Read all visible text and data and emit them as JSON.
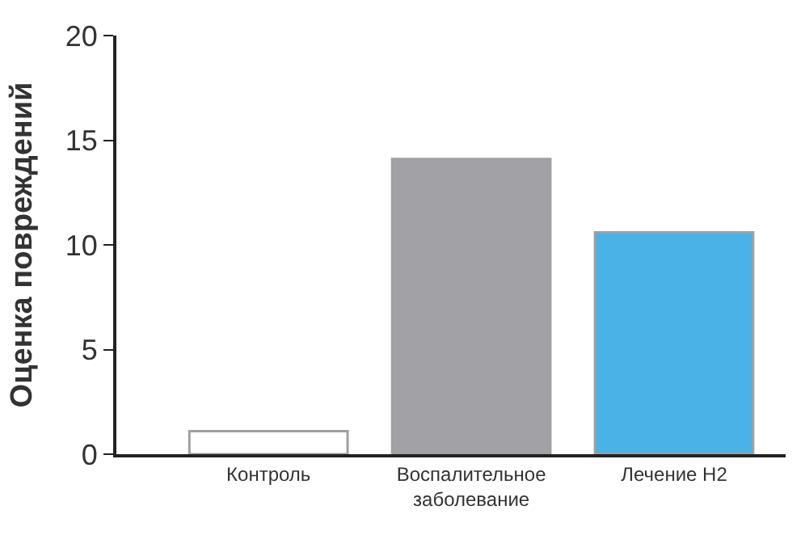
{
  "chart_data": {
    "type": "bar",
    "ylabel": "Оценка повреждений",
    "categories": [
      "Контроль",
      "Воспалительное заболевание",
      "Лечение H2"
    ],
    "values": [
      1.1,
      14.1,
      10.6
    ],
    "colors": [
      "#ffffff",
      "#a2a2a6",
      "#4ab2e6"
    ],
    "ylim": [
      0,
      20
    ],
    "yticks": [
      0,
      5,
      10,
      15,
      20
    ],
    "legend": false
  }
}
